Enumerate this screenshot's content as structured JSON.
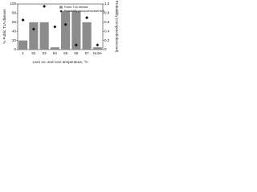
{
  "chart_data": {
    "type": "bar",
    "x_label": "Liver no. and core temperature, °C",
    "y_label": "% Public T1A disease",
    "y2_label": "Probability (computed/observed)",
    "categories": [
      "1",
      "52",
      "53",
      "54",
      "55",
      "56",
      "57",
      "None"
    ],
    "series": [
      {
        "name": "Public T1A disease",
        "color": "#8c8c8c",
        "values": [
          20,
          60,
          60,
          5,
          85,
          85,
          60,
          5
        ]
      },
      {
        "name": "Probability (computed/observed)",
        "color": "#111111",
        "axis": "y2",
        "values": [
          0.65,
          0.45,
          0.95,
          0.5,
          0.55,
          0.1,
          0.7,
          0.1
        ]
      }
    ],
    "ylim": [
      0,
      100
    ],
    "yticks": [
      0,
      20,
      40,
      60,
      80,
      100
    ],
    "y2lim": [
      0,
      1
    ],
    "y2ticks": [
      0,
      0.2,
      0.4,
      0.6,
      0.8,
      {
        "value": 1,
        "label": "1.0"
      }
    ],
    "legend": "top-right"
  }
}
